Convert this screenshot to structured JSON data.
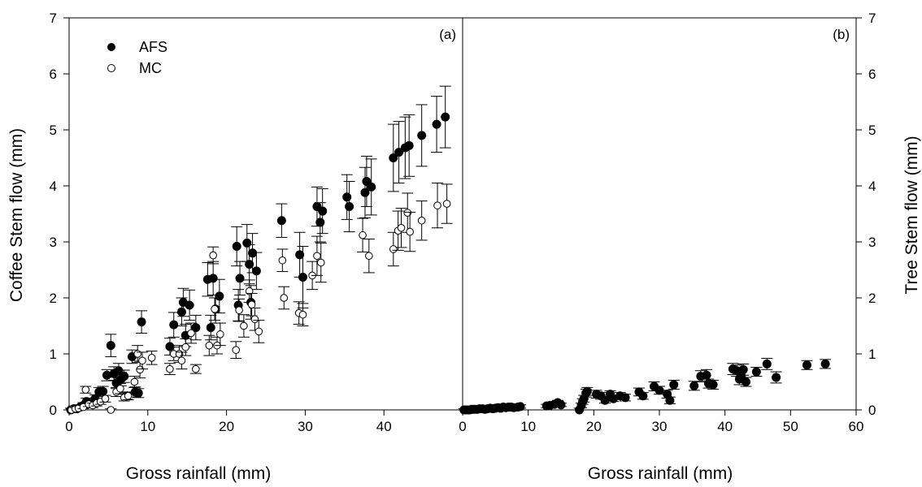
{
  "chart_data": [
    {
      "type": "scatter",
      "panel_label": "(a)",
      "xlabel": "Gross rainfall (mm)",
      "ylabel": "Coffee Stem flow (mm)",
      "xlim": [
        0,
        50
      ],
      "ylim": [
        0,
        7
      ],
      "xticks": [
        0,
        10,
        20,
        30,
        40
      ],
      "yticks": [
        0,
        1,
        2,
        3,
        4,
        5,
        6,
        7
      ],
      "grid": false,
      "legend_position": "top-left",
      "series": [
        {
          "name": "AFS",
          "marker": "filled-circle",
          "points": [
            [
              0.2,
              0.0,
              0.03
            ],
            [
              0.6,
              0.02,
              0.03
            ],
            [
              1.0,
              0.02,
              0.03
            ],
            [
              1.4,
              0.05,
              0.04
            ],
            [
              1.8,
              0.08,
              0.05
            ],
            [
              2.2,
              0.15,
              0.06
            ],
            [
              2.8,
              0.12,
              0.05
            ],
            [
              3.3,
              0.2,
              0.07
            ],
            [
              3.8,
              0.32,
              0.08
            ],
            [
              4.3,
              0.33,
              0.09
            ],
            [
              4.8,
              0.62,
              0.1
            ],
            [
              5.3,
              1.15,
              0.2
            ],
            [
              5.7,
              0.65,
              0.12
            ],
            [
              6.0,
              0.48,
              0.1
            ],
            [
              6.3,
              0.7,
              0.13
            ],
            [
              6.6,
              0.55,
              0.12
            ],
            [
              7.0,
              0.6,
              0.11
            ],
            [
              7.3,
              0.25,
              0.06
            ],
            [
              8.0,
              0.95,
              0.12
            ],
            [
              8.4,
              0.32,
              0.09
            ],
            [
              8.8,
              0.3,
              0.08
            ],
            [
              9.2,
              1.57,
              0.2
            ],
            [
              12.8,
              1.13,
              0.15
            ],
            [
              13.3,
              1.52,
              0.22
            ],
            [
              14.3,
              1.75,
              0.25
            ],
            [
              14.5,
              1.92,
              0.25
            ],
            [
              14.8,
              1.33,
              0.2
            ],
            [
              15.3,
              1.87,
              0.27
            ],
            [
              16.1,
              1.47,
              0.22
            ],
            [
              17.6,
              2.33,
              0.3
            ],
            [
              18.0,
              1.47,
              0.22
            ],
            [
              18.3,
              2.35,
              0.3
            ],
            [
              18.6,
              1.8,
              0.25
            ],
            [
              19.1,
              2.03,
              0.3
            ],
            [
              21.3,
              2.92,
              0.35
            ],
            [
              21.5,
              1.87,
              0.28
            ],
            [
              21.7,
              2.35,
              0.3
            ],
            [
              22.6,
              2.98,
              0.33
            ],
            [
              22.9,
              2.6,
              0.35
            ],
            [
              23.1,
              1.92,
              0.3
            ],
            [
              23.3,
              2.8,
              0.35
            ],
            [
              23.8,
              2.48,
              0.33
            ],
            [
              27.0,
              3.38,
              0.3
            ],
            [
              29.3,
              2.77,
              0.4
            ],
            [
              29.7,
              2.37,
              0.55
            ],
            [
              31.5,
              3.63,
              0.35
            ],
            [
              31.9,
              3.35,
              0.35
            ],
            [
              32.2,
              3.55,
              0.4
            ],
            [
              35.3,
              3.8,
              0.4
            ],
            [
              35.6,
              3.63,
              0.45
            ],
            [
              37.6,
              3.88,
              0.45
            ],
            [
              37.8,
              4.08,
              0.45
            ],
            [
              38.4,
              3.98,
              0.5
            ],
            [
              41.2,
              4.5,
              0.6
            ],
            [
              41.9,
              4.6,
              0.55
            ],
            [
              42.7,
              4.68,
              0.55
            ],
            [
              43.2,
              4.72,
              0.55
            ],
            [
              44.8,
              4.9,
              0.55
            ],
            [
              46.7,
              5.1,
              0.5
            ],
            [
              47.8,
              5.23,
              0.55
            ]
          ]
        },
        {
          "name": "MC",
          "marker": "open-circle",
          "points": [
            [
              0.3,
              0.0,
              0.02
            ],
            [
              0.8,
              0.02,
              0.02
            ],
            [
              1.2,
              0.03,
              0.03
            ],
            [
              1.8,
              0.05,
              0.03
            ],
            [
              2.1,
              0.36,
              0.06
            ],
            [
              2.5,
              0.1,
              0.04
            ],
            [
              3.0,
              0.08,
              0.04
            ],
            [
              3.5,
              0.12,
              0.05
            ],
            [
              4.0,
              0.15,
              0.05
            ],
            [
              4.6,
              0.2,
              0.06
            ],
            [
              5.3,
              0.0,
              0.02
            ],
            [
              6.0,
              0.32,
              0.08
            ],
            [
              6.5,
              0.38,
              0.09
            ],
            [
              7.0,
              0.22,
              0.06
            ],
            [
              7.5,
              0.25,
              0.07
            ],
            [
              8.3,
              0.5,
              0.1
            ],
            [
              8.7,
              1.0,
              0.15
            ],
            [
              9.0,
              0.72,
              0.15
            ],
            [
              9.3,
              0.88,
              0.15
            ],
            [
              10.5,
              0.93,
              0.12
            ],
            [
              12.8,
              0.73,
              0.1
            ],
            [
              13.3,
              1.0,
              0.12
            ],
            [
              14.0,
              1.0,
              0.15
            ],
            [
              14.3,
              0.88,
              0.15
            ],
            [
              14.8,
              1.12,
              0.15
            ],
            [
              15.5,
              1.37,
              0.18
            ],
            [
              16.1,
              0.73,
              0.08
            ],
            [
              17.8,
              1.15,
              0.18
            ],
            [
              18.3,
              2.76,
              0.15
            ],
            [
              18.5,
              1.8,
              0.2
            ],
            [
              18.8,
              1.15,
              0.15
            ],
            [
              19.2,
              1.35,
              0.2
            ],
            [
              21.2,
              1.07,
              0.15
            ],
            [
              21.6,
              1.78,
              0.2
            ],
            [
              22.2,
              1.5,
              0.2
            ],
            [
              22.9,
              2.12,
              0.2
            ],
            [
              23.2,
              1.88,
              0.2
            ],
            [
              23.6,
              1.62,
              0.2
            ],
            [
              24.1,
              1.4,
              0.2
            ],
            [
              27.1,
              2.67,
              0.2
            ],
            [
              27.3,
              2.0,
              0.2
            ],
            [
              29.2,
              1.73,
              0.2
            ],
            [
              29.7,
              1.7,
              0.2
            ],
            [
              30.9,
              2.4,
              0.25
            ],
            [
              31.5,
              2.75,
              0.35
            ],
            [
              32.0,
              2.63,
              0.35
            ],
            [
              37.3,
              3.12,
              0.3
            ],
            [
              38.1,
              2.75,
              0.3
            ],
            [
              41.2,
              2.87,
              0.3
            ],
            [
              41.8,
              3.2,
              0.35
            ],
            [
              42.2,
              3.25,
              0.35
            ],
            [
              43.0,
              3.52,
              0.35
            ],
            [
              43.3,
              3.18,
              0.35
            ],
            [
              44.8,
              3.38,
              0.35
            ],
            [
              46.8,
              3.65,
              0.4
            ],
            [
              48.0,
              3.68,
              0.35
            ]
          ]
        }
      ]
    },
    {
      "type": "scatter",
      "panel_label": "(b)",
      "xlabel": "Gross rainfall (mm)",
      "ylabel": "Tree Stem flow (mm)",
      "xlim": [
        0,
        60
      ],
      "ylim": [
        0,
        7
      ],
      "xticks": [
        0,
        10,
        20,
        30,
        40,
        50,
        60
      ],
      "yticks": [
        0,
        1,
        2,
        3,
        4,
        5,
        6,
        7
      ],
      "grid": false,
      "series": [
        {
          "marker": "filled-circle",
          "points": [
            [
              0.2,
              0.0,
              0.02
            ],
            [
              0.5,
              0.0,
              0.02
            ],
            [
              0.8,
              0.0,
              0.02
            ],
            [
              1.1,
              0.0,
              0.02
            ],
            [
              1.4,
              0.01,
              0.02
            ],
            [
              1.8,
              0.01,
              0.02
            ],
            [
              2.2,
              0.01,
              0.02
            ],
            [
              2.6,
              0.02,
              0.02
            ],
            [
              3.0,
              0.02,
              0.02
            ],
            [
              3.4,
              0.01,
              0.02
            ],
            [
              3.8,
              0.02,
              0.02
            ],
            [
              4.2,
              0.03,
              0.02
            ],
            [
              4.6,
              0.02,
              0.02
            ],
            [
              5.0,
              0.03,
              0.02
            ],
            [
              5.4,
              0.04,
              0.02
            ],
            [
              5.8,
              0.03,
              0.02
            ],
            [
              6.2,
              0.05,
              0.03
            ],
            [
              6.6,
              0.04,
              0.02
            ],
            [
              7.0,
              0.05,
              0.03
            ],
            [
              7.4,
              0.05,
              0.03
            ],
            [
              7.8,
              0.04,
              0.02
            ],
            [
              8.4,
              0.05,
              0.03
            ],
            [
              8.8,
              0.06,
              0.03
            ],
            [
              12.8,
              0.07,
              0.03
            ],
            [
              13.3,
              0.08,
              0.03
            ],
            [
              14.0,
              0.1,
              0.04
            ],
            [
              14.5,
              0.13,
              0.04
            ],
            [
              15.0,
              0.09,
              0.03
            ],
            [
              17.8,
              0.0,
              0.03
            ],
            [
              18.1,
              0.08,
              0.04
            ],
            [
              18.3,
              0.15,
              0.05
            ],
            [
              18.5,
              0.2,
              0.06
            ],
            [
              18.8,
              0.3,
              0.07
            ],
            [
              19.0,
              0.33,
              0.07
            ],
            [
              20.4,
              0.28,
              0.07
            ],
            [
              21.1,
              0.25,
              0.06
            ],
            [
              21.7,
              0.17,
              0.05
            ],
            [
              22.5,
              0.28,
              0.06
            ],
            [
              23.0,
              0.2,
              0.05
            ],
            [
              24.0,
              0.25,
              0.06
            ],
            [
              24.8,
              0.22,
              0.06
            ],
            [
              26.9,
              0.32,
              0.07
            ],
            [
              27.5,
              0.25,
              0.06
            ],
            [
              29.2,
              0.42,
              0.08
            ],
            [
              30.0,
              0.35,
              0.07
            ],
            [
              31.2,
              0.28,
              0.07
            ],
            [
              31.6,
              0.17,
              0.06
            ],
            [
              32.2,
              0.45,
              0.08
            ],
            [
              35.3,
              0.43,
              0.08
            ],
            [
              36.3,
              0.6,
              0.1
            ],
            [
              37.2,
              0.62,
              0.1
            ],
            [
              37.5,
              0.47,
              0.08
            ],
            [
              38.2,
              0.45,
              0.08
            ],
            [
              41.2,
              0.73,
              0.1
            ],
            [
              41.8,
              0.7,
              0.1
            ],
            [
              42.2,
              0.55,
              0.1
            ],
            [
              42.5,
              0.6,
              0.1
            ],
            [
              42.8,
              0.72,
              0.1
            ],
            [
              43.2,
              0.5,
              0.08
            ],
            [
              44.8,
              0.68,
              0.08
            ],
            [
              46.4,
              0.82,
              0.1
            ],
            [
              47.8,
              0.58,
              0.1
            ],
            [
              52.5,
              0.8,
              0.08
            ],
            [
              55.3,
              0.82,
              0.08
            ]
          ]
        }
      ]
    }
  ]
}
